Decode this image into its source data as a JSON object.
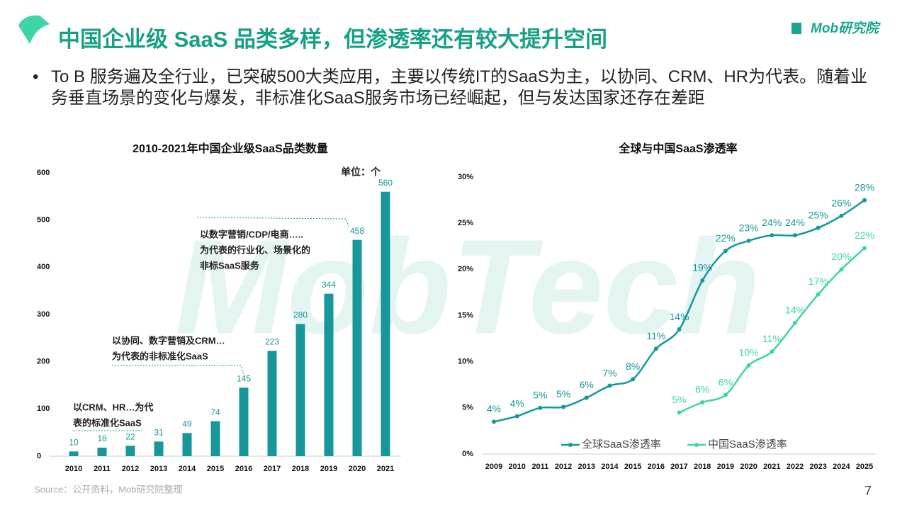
{
  "title": "中国企业级 SaaS 品类多样，但渗透率还有较大提升空间",
  "logo": "Mob研究院",
  "bullet": "To B 服务遍及全行业，已突破500大类应用，主要以传统IT的SaaS为主，以协同、CRM、HR为代表。随着业务垂直场景的变化与爆发，非标准化SaaS服务市场已经崛起，但与发达国家还存在差距",
  "watermark": "MobTech",
  "source": "Source：公开资料，Mob研究院整理",
  "page_number": "7",
  "chart_data": [
    {
      "type": "bar",
      "title": "2010-2021年中国企业级SaaS品类数量",
      "unit": "单位：个",
      "categories": [
        "2010",
        "2011",
        "2012",
        "2013",
        "2014",
        "2015",
        "2016",
        "2017",
        "2018",
        "2019",
        "2020",
        "2021"
      ],
      "values": [
        10,
        18,
        22,
        31,
        49,
        74,
        145,
        223,
        280,
        344,
        458,
        560
      ],
      "color": "#17979a",
      "ylim": [
        0,
        600
      ],
      "yticks": [
        0,
        100,
        200,
        300,
        400,
        500,
        600
      ],
      "annotations": [
        [
          "以CRM、HR…为代",
          "表的标准化SaaS"
        ],
        [
          "以协同、数字营销及CRM…",
          "为代表的非标准化SaaS"
        ],
        [
          "以数字营销/CDP/电商…..",
          "为代表的行业化、场景化的",
          "非标SaaS服务"
        ]
      ]
    },
    {
      "type": "line",
      "title": "全球与中国SaaS渗透率",
      "categories": [
        "2009",
        "2010",
        "2011",
        "2012",
        "2013",
        "2014",
        "2015",
        "2016",
        "2017",
        "2018",
        "2019",
        "2020",
        "2021",
        "2022",
        "2023",
        "2024",
        "2025"
      ],
      "series": [
        {
          "name": "全球SaaS渗透率",
          "color": "#17979a",
          "values": [
            3.5,
            4.1,
            5.0,
            5.1,
            6.1,
            7.4,
            8.1,
            11.4,
            13.5,
            18.8,
            22.0,
            23.1,
            23.7,
            23.7,
            24.5,
            25.8,
            27.5
          ],
          "value_labels": [
            "4%",
            "4%",
            "5%",
            "5%",
            "6%",
            "7%",
            "8%",
            "11%",
            "14%",
            "19%",
            "22%",
            "23%",
            "24%",
            "24%",
            "25%",
            "26%",
            "28%"
          ]
        },
        {
          "name": "中国SaaS渗透率",
          "color": "#3dd5a6",
          "values": [
            null,
            null,
            null,
            null,
            null,
            null,
            null,
            null,
            4.5,
            5.6,
            6.4,
            9.6,
            11.1,
            14.2,
            17.3,
            20.0,
            22.3
          ],
          "value_labels": [
            null,
            null,
            null,
            null,
            null,
            null,
            null,
            null,
            "5%",
            "6%",
            "6%",
            "10%",
            "11%",
            "14%",
            "17%",
            "20%",
            "22%"
          ]
        }
      ],
      "ylim": [
        0,
        30
      ],
      "yticks": [
        {
          "value": 0,
          "label": "0%"
        },
        {
          "value": 5,
          "label": "5%"
        },
        {
          "value": 10,
          "label": "10%"
        },
        {
          "value": 15,
          "label": "15%"
        },
        {
          "value": 20,
          "label": "20%"
        },
        {
          "value": 25,
          "label": "25%"
        },
        {
          "value": 30,
          "label": "30%"
        }
      ],
      "legend": "bottom"
    }
  ]
}
